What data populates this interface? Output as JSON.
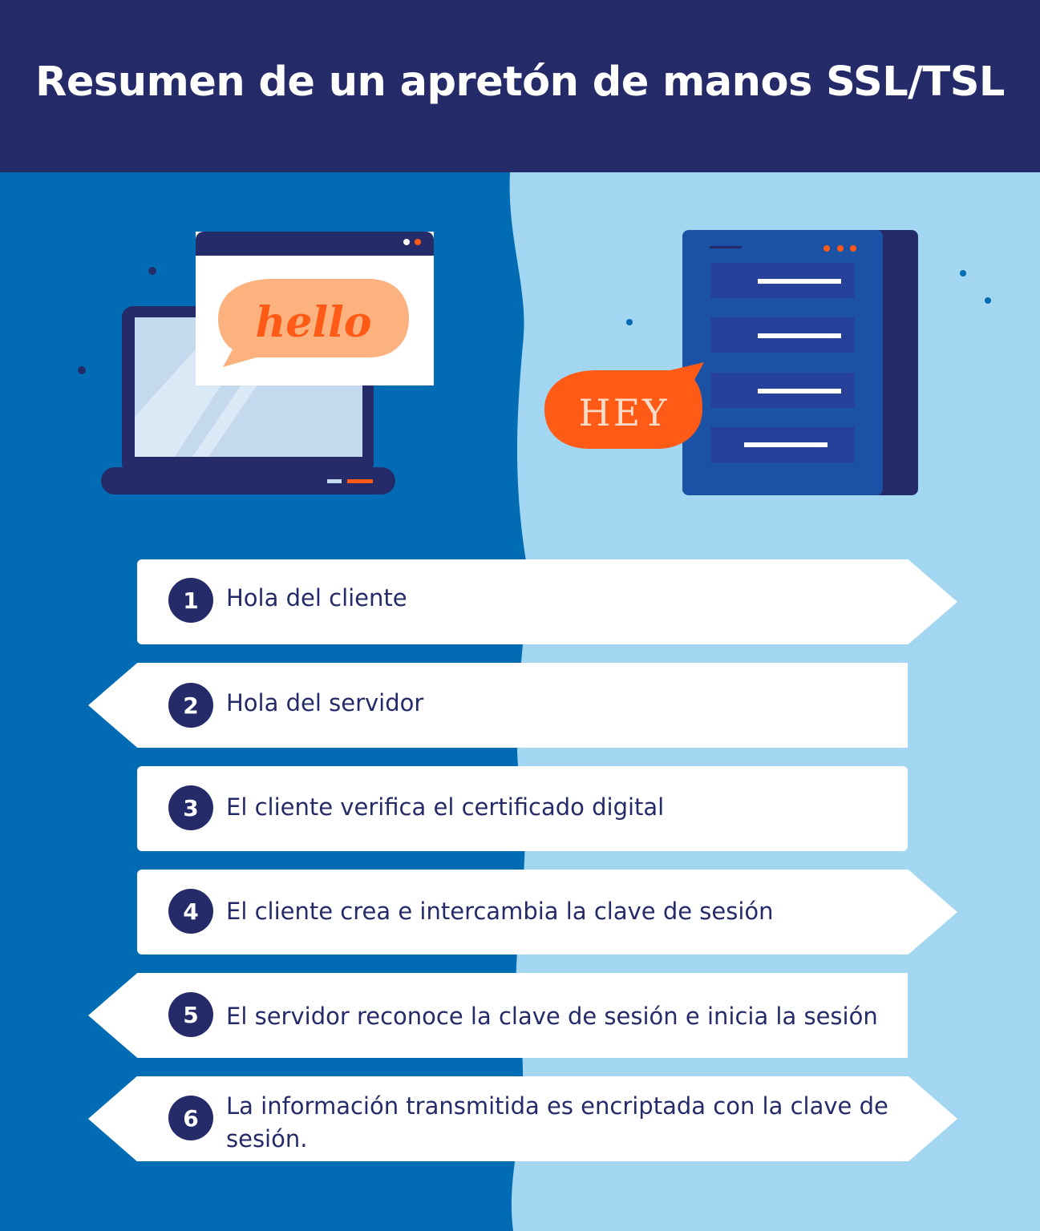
{
  "title": "Resumen de un apretón de manos SSL/TSL",
  "illustration": {
    "client_bubble": "hello",
    "server_bubble": "HEY",
    "client_icon": "laptop-icon",
    "server_icon": "server-icon"
  },
  "colors": {
    "header": "#252b69",
    "left_panel": "#016bb4",
    "right_panel": "#a3d7f1",
    "accent": "#ff5a16",
    "badge": "#252b69",
    "text": "#252b69"
  },
  "steps": [
    {
      "number": "1",
      "text": "Hola del cliente",
      "direction": "right"
    },
    {
      "number": "2",
      "text": "Hola del servidor",
      "direction": "left"
    },
    {
      "number": "3",
      "text": "El cliente verifica el certificado digital",
      "direction": "none"
    },
    {
      "number": "4",
      "text": "El cliente crea e intercambia la clave de sesión",
      "direction": "right"
    },
    {
      "number": "5",
      "text": "El servidor reconoce la clave de sesión e inicia la sesión",
      "direction": "left"
    },
    {
      "number": "6",
      "text": "La información transmitida es encriptada con la clave de sesión.",
      "direction": "both"
    }
  ]
}
